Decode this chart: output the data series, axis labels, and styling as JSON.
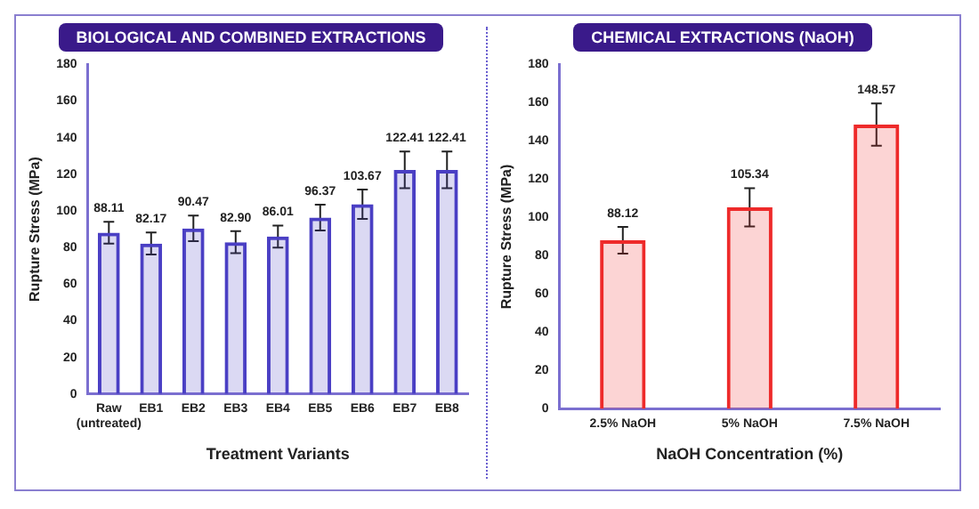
{
  "chart_data": [
    {
      "type": "bar",
      "title": "BIOLOGICAL AND COMBINED EXTRACTIONS",
      "xlabel": "Treatment Variants",
      "ylabel": "Rupture Stress (MPa)",
      "categories": [
        "Raw\n(untreated)",
        "EB1",
        "EB2",
        "EB3",
        "EB4",
        "EB5",
        "EB6",
        "EB7",
        "EB8"
      ],
      "values": [
        88.11,
        82.17,
        90.47,
        82.9,
        86.01,
        96.37,
        103.67,
        122.41,
        122.41
      ],
      "value_labels": [
        "88.11",
        "82.17",
        "90.47",
        "82.90",
        "86.01",
        "96.37",
        "103.67",
        "122.41",
        "122.41"
      ],
      "errors": [
        6,
        6,
        7,
        6,
        6,
        7,
        8,
        10,
        10
      ],
      "color": "#4a3fc4",
      "ylim": [
        0,
        180
      ],
      "yticks": [
        0,
        20,
        40,
        60,
        80,
        100,
        120,
        140,
        160,
        180
      ]
    },
    {
      "type": "bar",
      "title": "CHEMICAL EXTRACTIONS (NaOH)",
      "xlabel": "NaOH Concentration (%)",
      "ylabel": "Rupture Stress (MPa)",
      "categories": [
        "2.5% NaOH",
        "5% NaOH",
        "7.5% NaOH"
      ],
      "values": [
        88.12,
        105.34,
        148.57
      ],
      "errors": [
        7,
        10,
        11
      ],
      "color": "#ee2a2a",
      "ylim": [
        0,
        180
      ],
      "yticks": [
        0,
        20,
        40,
        60,
        80,
        100,
        120,
        140,
        160,
        180
      ],
      "data_labels": true
    }
  ]
}
